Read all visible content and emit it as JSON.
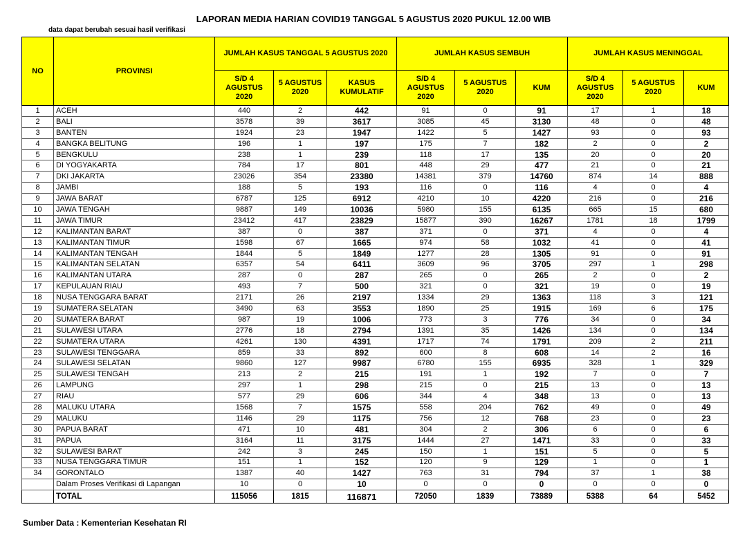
{
  "title": "LAPORAN MEDIA HARIAN COVID19 TANGGAL 5 AGUSTUS 2020 PUKUL 12.00 WIB",
  "note": "data dapat berubah sesuai hasil verifikasi",
  "table": {
    "header": {
      "no": "NO",
      "province": "PROVINSI",
      "groups": [
        "JUMLAH KASUS TANGGAL 5 AGUSTUS 2020",
        "JUMLAH KASUS SEMBUH",
        "JUMLAH KASUS MENINGGAL"
      ],
      "columns": [
        "S/D 4 AGUSTUS 2020",
        "5 AGUSTUS 2020",
        "KASUS KUMULATIF",
        "S/D 4 AGUSTUS 2020",
        "5 AGUSTUS 2020",
        "KUM",
        "S/D 4 AGUSTUS 2020",
        "5 AGUSTUS 2020",
        "KUM"
      ]
    },
    "rows": [
      {
        "no": 1,
        "province": "ACEH",
        "values": [
          440,
          2,
          442,
          91,
          0,
          91,
          17,
          1,
          18
        ]
      },
      {
        "no": 2,
        "province": "BALI",
        "values": [
          3578,
          39,
          3617,
          3085,
          45,
          3130,
          48,
          0,
          48
        ]
      },
      {
        "no": 3,
        "province": "BANTEN",
        "values": [
          1924,
          23,
          1947,
          1422,
          5,
          1427,
          93,
          0,
          93
        ]
      },
      {
        "no": 4,
        "province": "BANGKA BELITUNG",
        "values": [
          196,
          1,
          197,
          175,
          7,
          182,
          2,
          0,
          2
        ]
      },
      {
        "no": 5,
        "province": "BENGKULU",
        "values": [
          238,
          1,
          239,
          118,
          17,
          135,
          20,
          0,
          20
        ]
      },
      {
        "no": 6,
        "province": "DI YOGYAKARTA",
        "values": [
          784,
          17,
          801,
          448,
          29,
          477,
          21,
          0,
          21
        ]
      },
      {
        "no": 7,
        "province": "DKI JAKARTA",
        "values": [
          23026,
          354,
          23380,
          14381,
          379,
          14760,
          874,
          14,
          888
        ]
      },
      {
        "no": 8,
        "province": "JAMBI",
        "values": [
          188,
          5,
          193,
          116,
          0,
          116,
          4,
          0,
          4
        ]
      },
      {
        "no": 9,
        "province": "JAWA BARAT",
        "values": [
          6787,
          125,
          6912,
          4210,
          10,
          4220,
          216,
          0,
          216
        ]
      },
      {
        "no": 10,
        "province": "JAWA TENGAH",
        "values": [
          9887,
          149,
          10036,
          5980,
          155,
          6135,
          665,
          15,
          680
        ]
      },
      {
        "no": 11,
        "province": "JAWA TIMUR",
        "values": [
          23412,
          417,
          23829,
          15877,
          390,
          16267,
          1781,
          18,
          1799
        ]
      },
      {
        "no": 12,
        "province": "KALIMANTAN BARAT",
        "values": [
          387,
          0,
          387,
          371,
          0,
          371,
          4,
          0,
          4
        ]
      },
      {
        "no": 13,
        "province": "KALIMANTAN TIMUR",
        "values": [
          1598,
          67,
          1665,
          974,
          58,
          1032,
          41,
          0,
          41
        ]
      },
      {
        "no": 14,
        "province": "KALIMANTAN TENGAH",
        "values": [
          1844,
          5,
          1849,
          1277,
          28,
          1305,
          91,
          0,
          91
        ]
      },
      {
        "no": 15,
        "province": "KALIMANTAN SELATAN",
        "values": [
          6357,
          54,
          6411,
          3609,
          96,
          3705,
          297,
          1,
          298
        ]
      },
      {
        "no": 16,
        "province": "KALIMANTAN UTARA",
        "values": [
          287,
          0,
          287,
          265,
          0,
          265,
          2,
          0,
          2
        ]
      },
      {
        "no": 17,
        "province": "KEPULAUAN RIAU",
        "values": [
          493,
          7,
          500,
          321,
          0,
          321,
          19,
          0,
          19
        ]
      },
      {
        "no": 18,
        "province": "NUSA TENGGARA BARAT",
        "values": [
          2171,
          26,
          2197,
          1334,
          29,
          1363,
          118,
          3,
          121
        ]
      },
      {
        "no": 19,
        "province": "SUMATERA SELATAN",
        "values": [
          3490,
          63,
          3553,
          1890,
          25,
          1915,
          169,
          6,
          175
        ]
      },
      {
        "no": 20,
        "province": "SUMATERA BARAT",
        "values": [
          987,
          19,
          1006,
          773,
          3,
          776,
          34,
          0,
          34
        ]
      },
      {
        "no": 21,
        "province": "SULAWESI UTARA",
        "values": [
          2776,
          18,
          2794,
          1391,
          35,
          1426,
          134,
          0,
          134
        ]
      },
      {
        "no": 22,
        "province": "SUMATERA UTARA",
        "values": [
          4261,
          130,
          4391,
          1717,
          74,
          1791,
          209,
          2,
          211
        ]
      },
      {
        "no": 23,
        "province": "SULAWESI TENGGARA",
        "values": [
          859,
          33,
          892,
          600,
          8,
          608,
          14,
          2,
          16
        ]
      },
      {
        "no": 24,
        "province": "SULAWESI SELATAN",
        "values": [
          9860,
          127,
          9987,
          6780,
          155,
          6935,
          328,
          1,
          329
        ]
      },
      {
        "no": 25,
        "province": "SULAWESI TENGAH",
        "values": [
          213,
          2,
          215,
          191,
          1,
          192,
          7,
          0,
          7
        ]
      },
      {
        "no": 26,
        "province": "LAMPUNG",
        "values": [
          297,
          1,
          298,
          215,
          0,
          215,
          13,
          0,
          13
        ]
      },
      {
        "no": 27,
        "province": "RIAU",
        "values": [
          577,
          29,
          606,
          344,
          4,
          348,
          13,
          0,
          13
        ]
      },
      {
        "no": 28,
        "province": "MALUKU UTARA",
        "values": [
          1568,
          7,
          1575,
          558,
          204,
          762,
          49,
          0,
          49
        ]
      },
      {
        "no": 29,
        "province": "MALUKU",
        "values": [
          1146,
          29,
          1175,
          756,
          12,
          768,
          23,
          0,
          23
        ]
      },
      {
        "no": 30,
        "province": "PAPUA BARAT",
        "values": [
          471,
          10,
          481,
          304,
          2,
          306,
          6,
          0,
          6
        ]
      },
      {
        "no": 31,
        "province": "PAPUA",
        "values": [
          3164,
          11,
          3175,
          1444,
          27,
          1471,
          33,
          0,
          33
        ]
      },
      {
        "no": 32,
        "province": "SULAWESI BARAT",
        "values": [
          242,
          3,
          245,
          150,
          1,
          151,
          5,
          0,
          5
        ]
      },
      {
        "no": 33,
        "province": "NUSA TENGGARA TIMUR",
        "values": [
          151,
          1,
          152,
          120,
          9,
          129,
          1,
          0,
          1
        ]
      },
      {
        "no": 34,
        "province": "GORONTALO",
        "values": [
          1387,
          40,
          1427,
          763,
          31,
          794,
          37,
          1,
          38
        ]
      },
      {
        "province": "Dalam Proses Verifikasi di Lapangan",
        "values": [
          10,
          0,
          10,
          0,
          0,
          0,
          0,
          0,
          0
        ]
      }
    ],
    "total": {
      "label": "TOTAL",
      "values": [
        115056,
        1815,
        116871,
        72050,
        1839,
        73889,
        5388,
        64,
        5452
      ]
    }
  },
  "source": "Sumber Data : Kementerian Kesehatan RI"
}
